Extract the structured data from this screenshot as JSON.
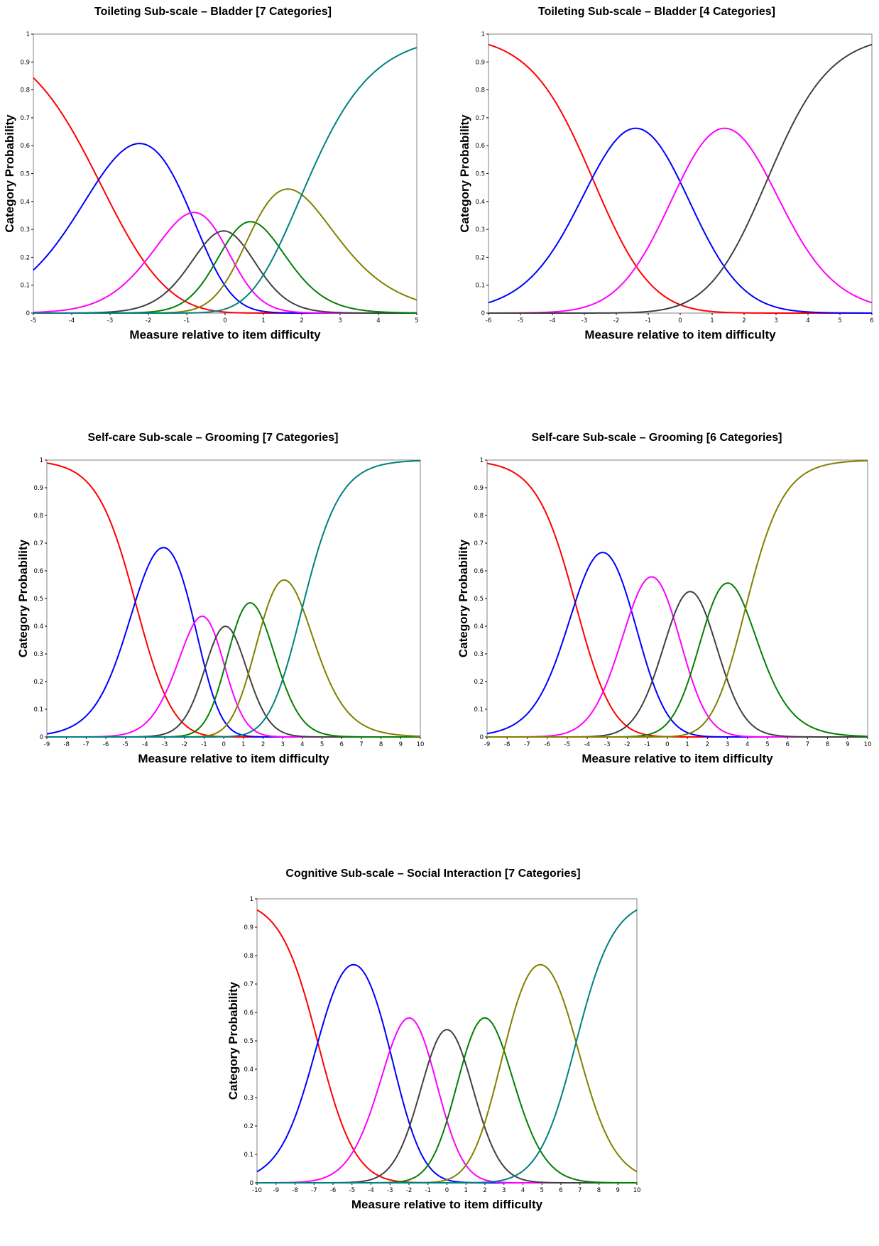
{
  "chart_data": [
    {
      "type": "line",
      "title": "Toileting Sub-scale – Bladder [7 Categories]",
      "xlabel": "Measure relative to item difficulty",
      "ylabel": "Category Probability",
      "xlim": [
        -5,
        5
      ],
      "ylim": [
        0,
        1
      ],
      "xticks": [
        "-5",
        "-4",
        "-3",
        "-2",
        "-1",
        "0",
        "1",
        "2",
        "3",
        "4",
        "5"
      ],
      "yticks": [
        "0",
        "0.1",
        "0.2",
        "0.3",
        "0.4",
        "0.5",
        "0.6",
        "0.7",
        "0.8",
        "0.9",
        "1"
      ],
      "grid": false,
      "thresholds": [
        -3.3,
        -0.9,
        -0.2,
        0.2,
        0.8,
        2.0
      ],
      "series_colors": [
        "#ff0000",
        "#0000ff",
        "#ff00ff",
        "#404040",
        "#008000",
        "#808000",
        "#008080"
      ]
    },
    {
      "type": "line",
      "title": "Toileting Sub-scale – Bladder [4 Categories]",
      "xlabel": "Measure relative to item difficulty",
      "ylabel": "Category Probability",
      "xlim": [
        -6,
        6
      ],
      "ylim": [
        0,
        1
      ],
      "xticks": [
        "-6",
        "-5",
        "-4",
        "-3",
        "-2",
        "-1",
        "0",
        "1",
        "2",
        "3",
        "4",
        "5",
        "6"
      ],
      "yticks": [
        "0",
        "0.1",
        "0.2",
        "0.3",
        "0.4",
        "0.5",
        "0.6",
        "0.7",
        "0.8",
        "0.9",
        "1"
      ],
      "grid": false,
      "thresholds": [
        -2.75,
        0.0,
        2.75
      ],
      "series_colors": [
        "#ff0000",
        "#0000ff",
        "#ff00ff",
        "#404040"
      ]
    },
    {
      "type": "line",
      "title": "Self-care Sub-scale – Grooming [7 Categories]",
      "xlabel": "Measure relative to item difficulty",
      "ylabel": "Category Probability",
      "xlim": [
        -9,
        10
      ],
      "ylim": [
        0,
        1
      ],
      "xticks": [
        "-9",
        "-8",
        "-7",
        "-6",
        "-5",
        "-4",
        "-3",
        "-2",
        "-1",
        "0",
        "1",
        "2",
        "3",
        "4",
        "5",
        "6",
        "7",
        "8",
        "9",
        "10"
      ],
      "yticks": [
        "0",
        "0.1",
        "0.2",
        "0.3",
        "0.4",
        "0.5",
        "0.6",
        "0.7",
        "0.8",
        "0.9",
        "1"
      ],
      "grid": false,
      "thresholds": [
        -4.5,
        -1.5,
        -0.4,
        0.5,
        2.0,
        4.0
      ],
      "series_colors": [
        "#ff0000",
        "#0000ff",
        "#ff00ff",
        "#404040",
        "#008000",
        "#808000",
        "#008080"
      ]
    },
    {
      "type": "line",
      "title": "Self-care Sub-scale – Grooming [6 Categories]",
      "xlabel": "Measure relative to item difficulty",
      "ylabel": "Category Probability",
      "xlim": [
        -9,
        10
      ],
      "ylim": [
        0,
        1
      ],
      "xticks": [
        "-9",
        "-8",
        "-7",
        "-6",
        "-5",
        "-4",
        "-3",
        "-2",
        "-1",
        "0",
        "1",
        "2",
        "3",
        "4",
        "5",
        "6",
        "7",
        "8",
        "9",
        "10"
      ],
      "yticks": [
        "0",
        "0.1",
        "0.2",
        "0.3",
        "0.4",
        "0.5",
        "0.6",
        "0.7",
        "0.8",
        "0.9",
        "1"
      ],
      "grid": false,
      "thresholds": [
        -4.6,
        -1.8,
        0.3,
        2.0,
        3.9
      ],
      "series_colors": [
        "#ff0000",
        "#0000ff",
        "#ff00ff",
        "#404040",
        "#008000",
        "#808000"
      ]
    },
    {
      "type": "line",
      "title": "Cognitive Sub-scale – Social Interaction [7 Categories]",
      "xlabel": "Measure relative to item difficulty",
      "ylabel": "Category Probability",
      "xlim": [
        -10,
        10
      ],
      "ylim": [
        0,
        1
      ],
      "xticks": [
        "-10",
        "-9",
        "-8",
        "-7",
        "-6",
        "-5",
        "-4",
        "-3",
        "-2",
        "-1",
        "0",
        "1",
        "2",
        "3",
        "4",
        "5",
        "6",
        "7",
        "8",
        "9",
        "10"
      ],
      "yticks": [
        "0",
        "0.1",
        "0.2",
        "0.3",
        "0.4",
        "0.5",
        "0.6",
        "0.7",
        "0.8",
        "0.9",
        "1"
      ],
      "grid": false,
      "thresholds": [
        -6.8,
        -3.0,
        -0.9,
        0.9,
        3.0,
        6.8
      ],
      "series_colors": [
        "#ff0000",
        "#0000ff",
        "#ff00ff",
        "#404040",
        "#008000",
        "#808000",
        "#008080"
      ]
    }
  ]
}
